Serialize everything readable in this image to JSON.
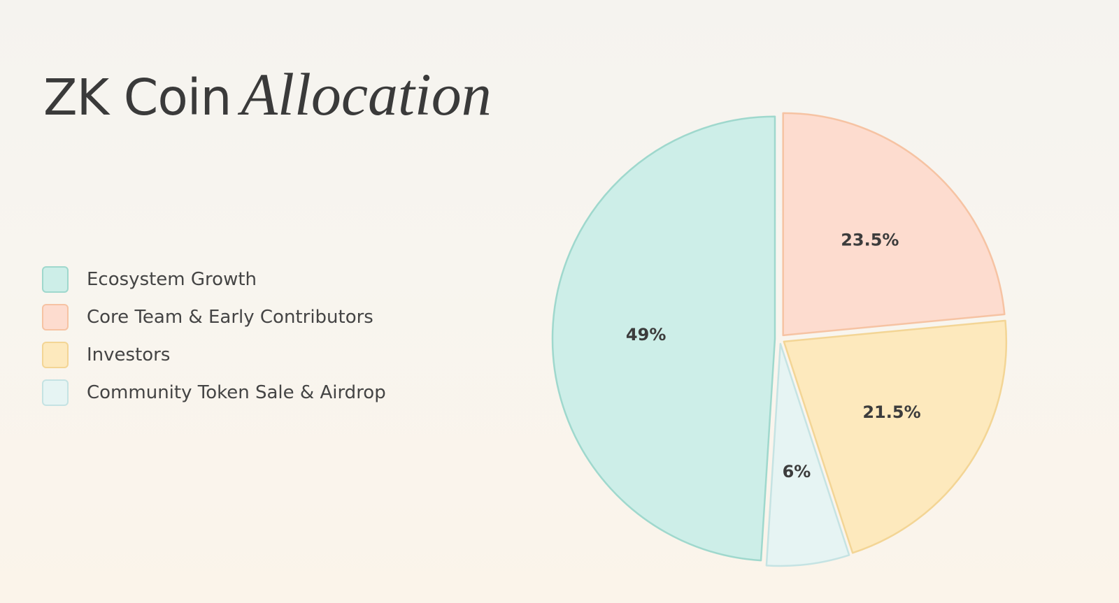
{
  "title": {
    "main": "ZK Coin",
    "accent": "Allocation"
  },
  "chart_data": {
    "type": "pie",
    "title": "ZK Coin Allocation",
    "legend_position": "left",
    "slices": [
      {
        "name": "Ecosystem Growth",
        "value": 49,
        "label": "49%",
        "fill": "#cdeee8",
        "stroke": "#9fd8cd"
      },
      {
        "name": "Core Team & Early Contributors",
        "value": 23.5,
        "label": "23.5%",
        "fill": "#fddccf",
        "stroke": "#f6c3a3"
      },
      {
        "name": "Investors",
        "value": 21.5,
        "label": "21.5%",
        "fill": "#fde9bd",
        "stroke": "#f3d595"
      },
      {
        "name": "Community Token Sale & Airdrop",
        "value": 6,
        "label": "6%",
        "fill": "#e6f4f3",
        "stroke": "#c5e3e3"
      }
    ]
  }
}
